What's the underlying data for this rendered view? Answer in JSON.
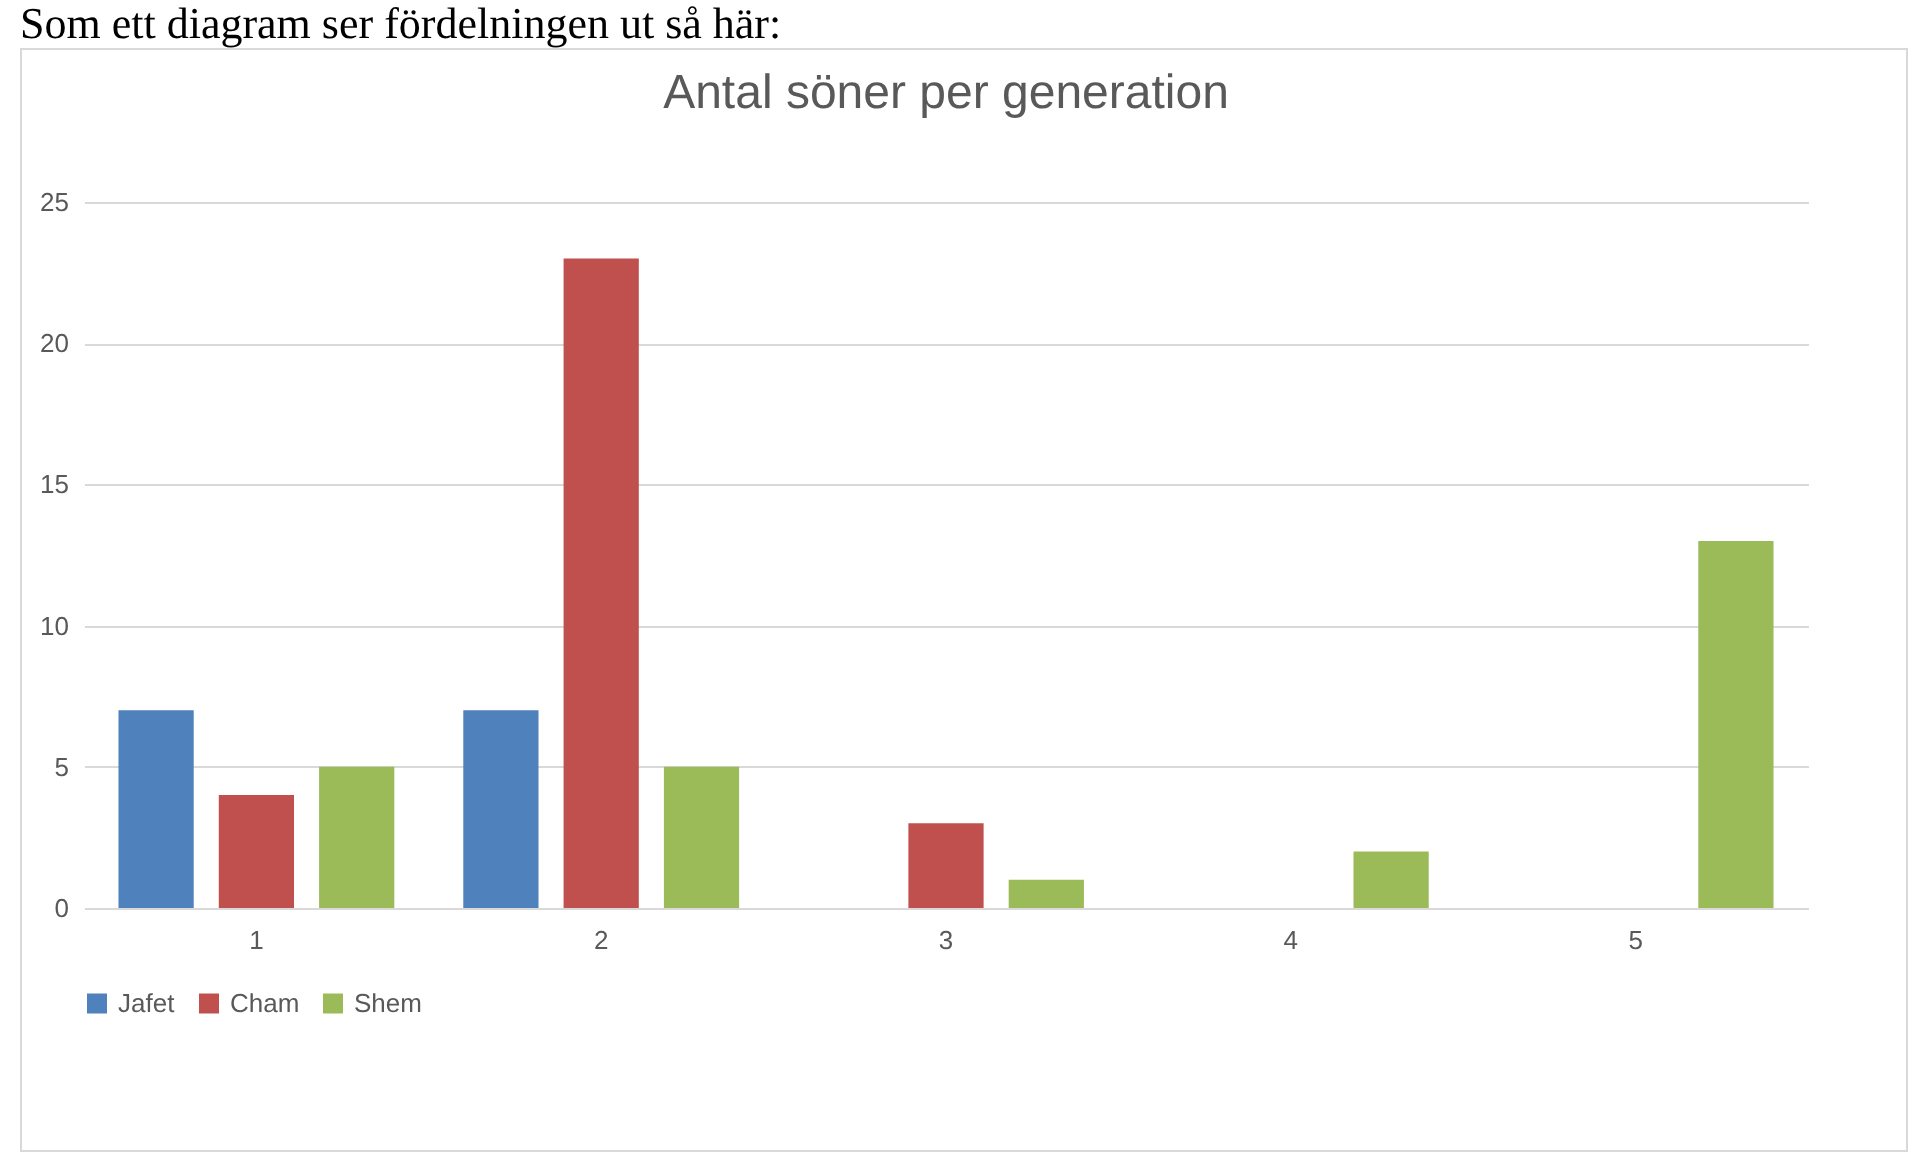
{
  "chart_data": {
    "type": "bar",
    "title": "Antal söner per generation",
    "annotations": [
      "Som ett diagram ser fördelningen ut så här:"
    ],
    "categories": [
      "1",
      "2",
      "3",
      "4",
      "5"
    ],
    "series": [
      {
        "name": "Jafet",
        "color": "#4f81bd",
        "values": [
          7,
          7,
          0,
          0,
          0
        ]
      },
      {
        "name": "Cham",
        "color": "#c0504d",
        "values": [
          4,
          23,
          3,
          0,
          0
        ]
      },
      {
        "name": "Shem",
        "color": "#9bbb59",
        "values": [
          5,
          5,
          1,
          2,
          13
        ]
      }
    ],
    "ylim": [
      0,
      25
    ],
    "yticks": [
      0,
      5,
      10,
      15,
      20,
      25
    ],
    "grid": "y",
    "legend": "bottom"
  }
}
